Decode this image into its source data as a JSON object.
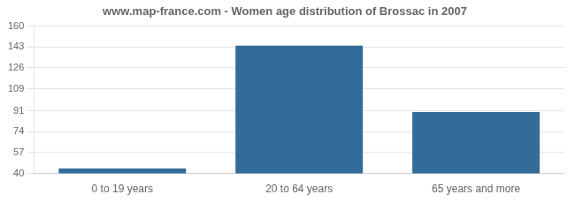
{
  "chart_data": {
    "type": "bar",
    "title": "www.map-france.com - Women age distribution of Brossac in 2007",
    "categories": [
      "0 to 19 years",
      "20 to 64 years",
      "65 years and more"
    ],
    "values": [
      44,
      144,
      90
    ],
    "color": "#336b99",
    "ylim": [
      40,
      160
    ],
    "yticks": [
      40,
      57,
      74,
      91,
      109,
      126,
      143,
      160
    ],
    "grid": true
  }
}
